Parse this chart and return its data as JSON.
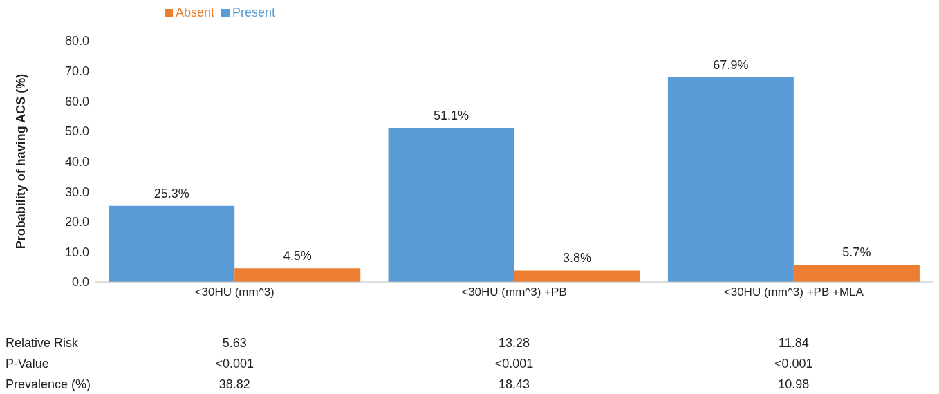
{
  "chart_data": {
    "type": "bar",
    "ylabel": "Probability of having ACS (%)",
    "categories": [
      "<30HU (mm^3)",
      "<30HU (mm^3) +PB",
      "<30HU (mm^3) +PB +MLA"
    ],
    "series": [
      {
        "name": "Present",
        "color": "#5b9bd5",
        "values": [
          25.3,
          51.1,
          67.9
        ],
        "value_labels": [
          "25.3%",
          "51.1%",
          "67.9%"
        ]
      },
      {
        "name": "Absent",
        "color": "#ed7d31",
        "values": [
          4.5,
          3.8,
          5.7
        ],
        "value_labels": [
          "4.5%",
          "3.8%",
          "5.7%"
        ]
      }
    ],
    "ylim": [
      0,
      80
    ],
    "yticks": [
      {
        "value": 0,
        "label": "0.0"
      },
      {
        "value": 10,
        "label": "10.0"
      },
      {
        "value": 20,
        "label": "20.0"
      },
      {
        "value": 30,
        "label": "30.0"
      },
      {
        "value": 40,
        "label": "40.0"
      },
      {
        "value": 50,
        "label": "50.0"
      },
      {
        "value": 60,
        "label": "60.0"
      },
      {
        "value": 70,
        "label": "70.0"
      },
      {
        "value": 80,
        "label": "80.0"
      }
    ],
    "grid": false,
    "legend": "top left",
    "annotations": [
      "Relative Risk",
      "5.63",
      "13.28",
      "11.84",
      "P-Value",
      "<0.001",
      "<0.001",
      "<0.001",
      "Prevalence (%)",
      "38.82",
      "18.43",
      "10.98"
    ]
  }
}
